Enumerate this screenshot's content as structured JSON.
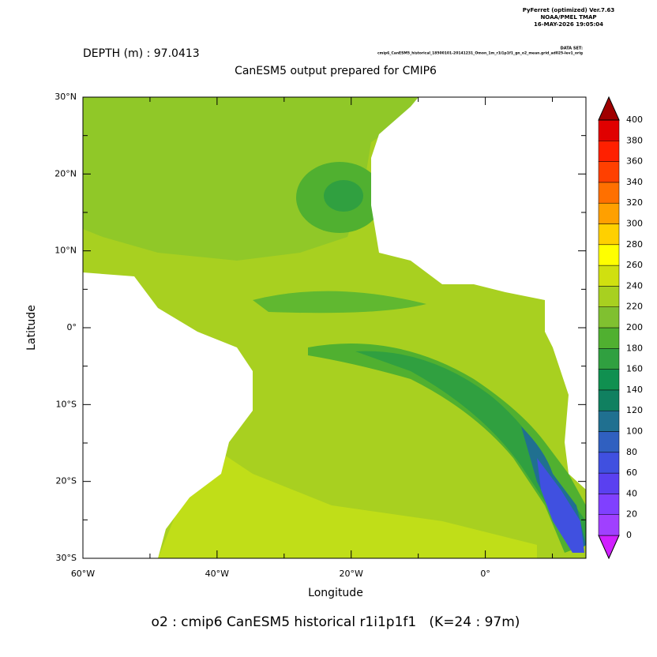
{
  "chart_data": {
    "type": "map",
    "header": [
      "PyFerret (optimized) Ver.7.63",
      "NOAA/PMEL TMAP",
      "16-MAY-2026 19:05:04"
    ],
    "dataset_label": "DATA SET:",
    "dataset": "cmip6_CanESM5_historical_18500101-20141231_Omon_1m_r1i1p1f1_gn_o2_mean.grid_ad025-lev1_orig",
    "depth_label": "DEPTH (m) : 97.0413",
    "title": "CanESM5 output prepared for CMIP6",
    "xlabel": "Longitude",
    "ylabel": "Latitude",
    "caption": "o2 : cmip6 CanESM5 historical r1i1p1f1   (K=24 : 97m)",
    "xlim": [
      -60,
      15
    ],
    "ylim": [
      -30,
      30
    ],
    "xticks": [
      {
        "value": -60,
        "label": "60°W"
      },
      {
        "value": -40,
        "label": "40°W"
      },
      {
        "value": -20,
        "label": "20°W"
      },
      {
        "value": 0,
        "label": "0°"
      }
    ],
    "xminor": [
      -50,
      -30,
      -10,
      10
    ],
    "yticks": [
      {
        "value": 30,
        "label": "30°N"
      },
      {
        "value": 20,
        "label": "20°N"
      },
      {
        "value": 10,
        "label": "10°N"
      },
      {
        "value": 0,
        "label": "0°"
      },
      {
        "value": -10,
        "label": "10°S"
      },
      {
        "value": -20,
        "label": "20°S"
      },
      {
        "value": -30,
        "label": "30°S"
      }
    ],
    "yminor": [
      25,
      15,
      5,
      -5,
      -15,
      -25
    ],
    "colorbar": {
      "levels": [
        0,
        20,
        40,
        60,
        80,
        100,
        120,
        140,
        160,
        180,
        200,
        220,
        240,
        260,
        280,
        300,
        320,
        340,
        360,
        380,
        400
      ],
      "colors": [
        "#d020ff",
        "#a040ff",
        "#8040ff",
        "#5a40f0",
        "#4050e0",
        "#3060c0",
        "#207090",
        "#108060",
        "#109050",
        "#30a040",
        "#50b030",
        "#80c030",
        "#a8d020",
        "#d0e010",
        "#ffff00",
        "#ffd000",
        "#ffa000",
        "#ff7000",
        "#ff4000",
        "#ff2000",
        "#e00000",
        "#a00000"
      ]
    }
  }
}
